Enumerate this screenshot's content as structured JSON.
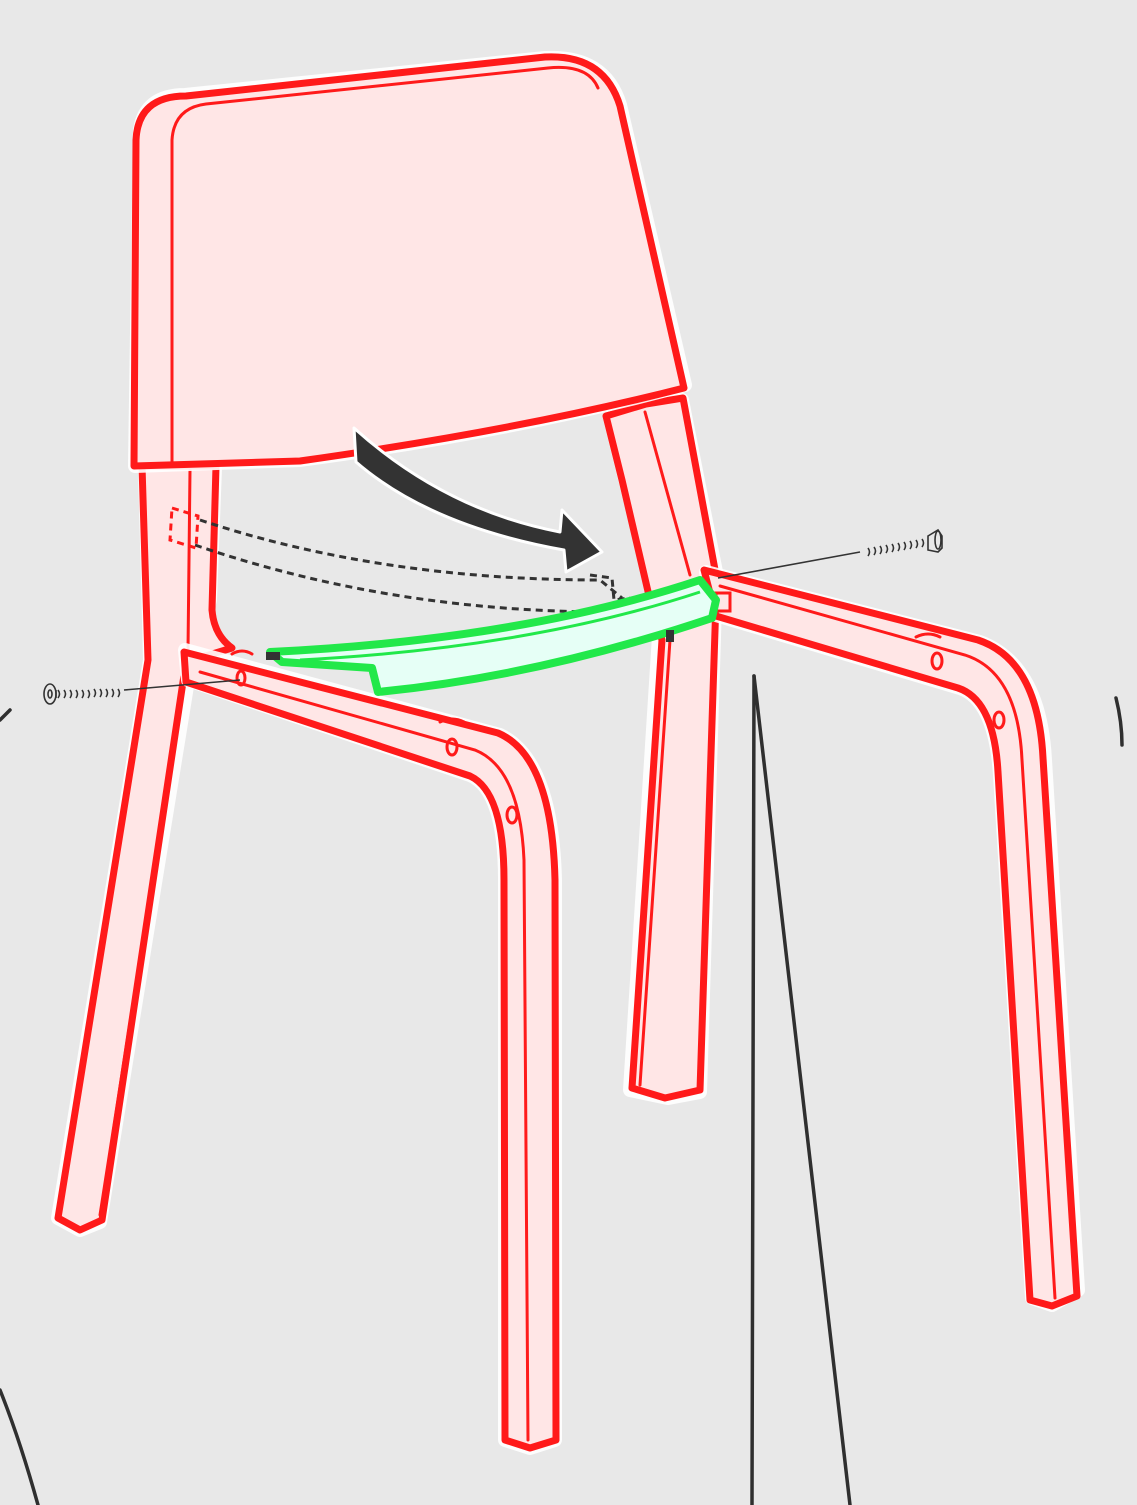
{
  "diagram": {
    "subject": "chair-assembly-step",
    "colors": {
      "background": "#e8e8e8",
      "frame_outline": "#ff1a1a",
      "frame_fill": "#ffe6e6",
      "highlight_part": "#22e84a",
      "highlight_fill": "#e6fff6",
      "arrow": "#333333",
      "line_art": "#333333"
    },
    "icons": {
      "left_screw": "screw-icon",
      "right_screw": "screw-icon",
      "motion_arrow": "curved-arrow-icon"
    }
  }
}
